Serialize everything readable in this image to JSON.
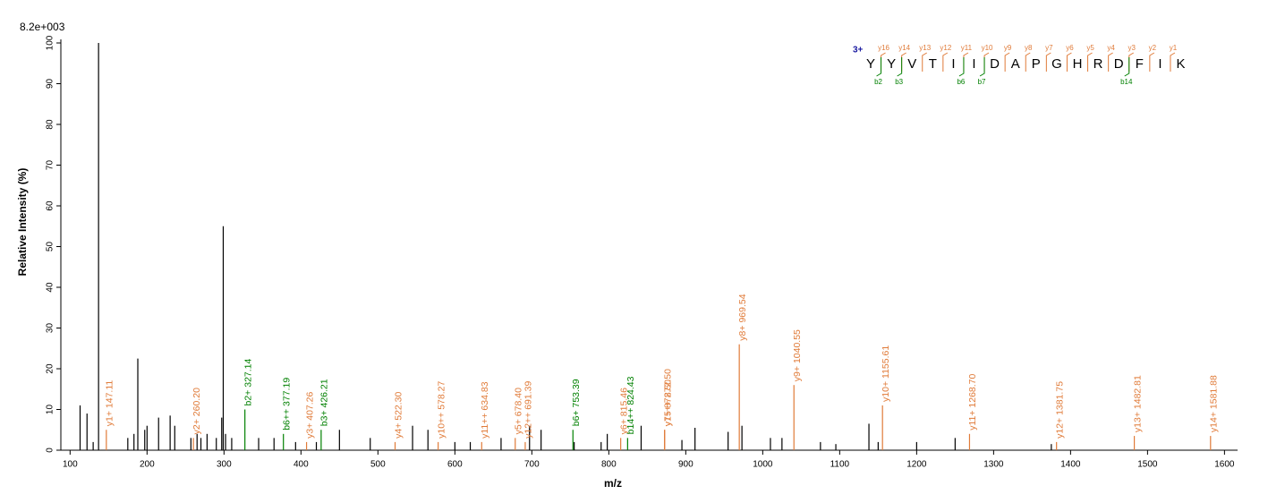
{
  "chart_data": {
    "type": "spectrum",
    "title": "8.2e+003",
    "x_label": "m/z",
    "y_label": "Relative  Intensity (%)",
    "xlim": [
      88,
      1617
    ],
    "ylim": [
      0,
      100
    ],
    "xticks": [
      100,
      200,
      300,
      400,
      500,
      600,
      700,
      800,
      900,
      1000,
      1100,
      1200,
      1300,
      1400,
      1500,
      1600
    ],
    "yticks": [
      0,
      10,
      20,
      30,
      40,
      50,
      60,
      70,
      80,
      90,
      100
    ],
    "series": [
      {
        "name": "peaks",
        "color": "#000000",
        "x": [
          113,
          122,
          130,
          137,
          175,
          183,
          188,
          197,
          200,
          215,
          230,
          236,
          257,
          265,
          270,
          278,
          290,
          297,
          299,
          302,
          310,
          345,
          365,
          393,
          420,
          450,
          490,
          545,
          565,
          600,
          620,
          660,
          697,
          712,
          755,
          790,
          798,
          842,
          895,
          912,
          955,
          973,
          1010,
          1025,
          1075,
          1095,
          1138,
          1150,
          1200,
          1250,
          1375
        ],
        "values": [
          11,
          9,
          2,
          100,
          3,
          4,
          22.5,
          5,
          6,
          8,
          8.5,
          6,
          3,
          4,
          3,
          4,
          3,
          8,
          55,
          4,
          3,
          3,
          3,
          2,
          2,
          5,
          3,
          6,
          5,
          2,
          2,
          3,
          6,
          5,
          2,
          2,
          4,
          6,
          2.5,
          5.5,
          4.5,
          6,
          3,
          3,
          2,
          1.5,
          6.5,
          2,
          2,
          3,
          1.5
        ]
      },
      {
        "name": "y ions",
        "color": "#e07b39",
        "x": [
          147.11,
          260.2,
          407.26,
          522.3,
          578.27,
          634.83,
          678.4,
          691.39,
          815.46,
          872.5,
          872.5,
          969.54,
          1040.55,
          1155.61,
          1268.7,
          1381.75,
          1482.81,
          1581.88
        ],
        "values": [
          5,
          3,
          2,
          2,
          2,
          2,
          3,
          2,
          3,
          5,
          5,
          26,
          16,
          11,
          4,
          2,
          3.5,
          3.5
        ],
        "labels": [
          "y1+ 147.11",
          "y2+ 260.20",
          "y3+ 407.26",
          "y4+ 522.30",
          "y10++ 578.27",
          "y11++ 634.83",
          "y5+ 678.40",
          "y12++ 691.39",
          "y6+ 815.46",
          "y7+ 872.50",
          "y15++ 872.50",
          "y8+ 969.54",
          "y9+ 1040.55",
          "y10+ 1155.61",
          "y11+ 1268.70",
          "y12+ 1381.75",
          "y13+ 1482.81",
          "y14+ 1581.88"
        ]
      },
      {
        "name": "b ions",
        "color": "#008000",
        "x": [
          327.14,
          377.19,
          426.21,
          753.39,
          824.43
        ],
        "values": [
          10,
          4,
          5,
          5,
          3
        ],
        "labels": [
          "b2+ 327.14",
          "b6++ 377.19",
          "b3+ 426.21",
          "b6+ 753.39",
          "b14++ 824.43"
        ]
      }
    ],
    "sequence": {
      "charge": "3+",
      "residues": [
        "Y",
        "Y",
        "V",
        "T",
        "I",
        "I",
        "D",
        "A",
        "P",
        "G",
        "H",
        "R",
        "D",
        "F",
        "I",
        "K"
      ],
      "y_fragments": [
        "y16",
        "y14",
        "y13",
        "y12",
        "y11",
        "y10",
        "y9",
        "y8",
        "y7",
        "y6",
        "y5",
        "y4",
        "y3",
        "y2",
        "y1"
      ],
      "b_fragments": [
        "b2",
        "b3",
        null,
        null,
        "b6",
        "b7",
        null,
        null,
        null,
        null,
        null,
        null,
        "b14",
        null,
        null
      ]
    }
  }
}
